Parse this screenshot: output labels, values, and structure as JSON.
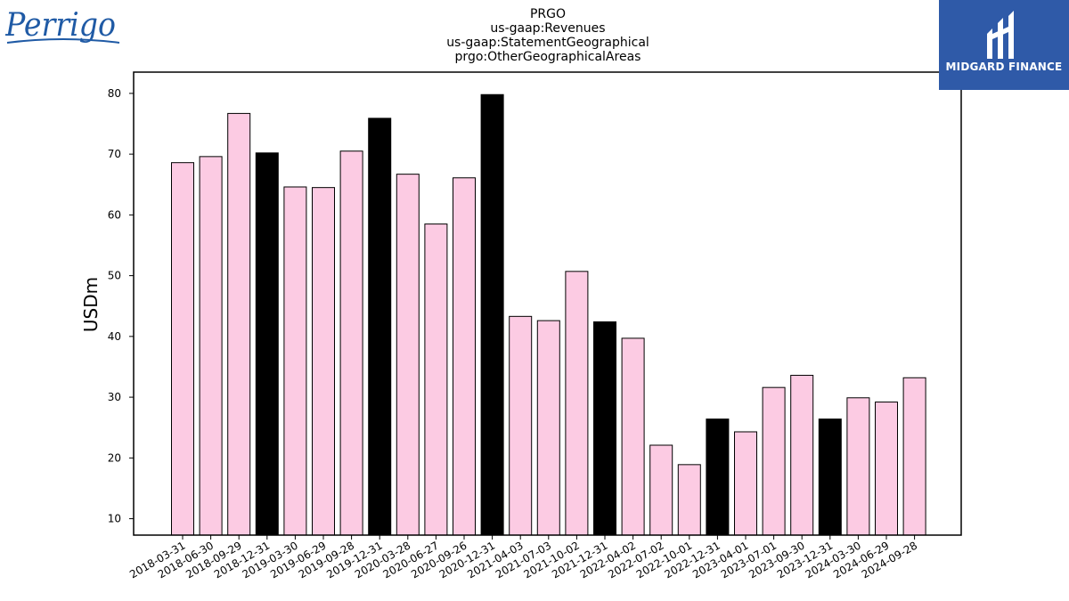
{
  "logos": {
    "left_brand": "Perrigo",
    "right_brand": "MIDGARD FINANCE"
  },
  "colors": {
    "quarter_bar": "#fccbe3",
    "year_end_bar": "#000000",
    "brand_blue": "#2f5aa8",
    "perrigo_blue": "#1f5aa5"
  },
  "chart_data": {
    "type": "bar",
    "title": [
      "PRGO",
      "us-gaap:Revenues",
      "us-gaap:StatementGeographical",
      "prgo:OtherGeographicalAreas"
    ],
    "xlabel": "",
    "ylabel": "USDm",
    "ylim": [
      7.3,
      83.5
    ],
    "yticks": [
      10,
      20,
      30,
      40,
      50,
      60,
      70,
      80
    ],
    "grid": false,
    "categories": [
      "2018-03-31",
      "2018-06-30",
      "2018-09-29",
      "2018-12-31",
      "2019-03-30",
      "2019-06-29",
      "2019-09-28",
      "2019-12-31",
      "2020-03-28",
      "2020-06-27",
      "2020-09-26",
      "2020-12-31",
      "2021-04-03",
      "2021-07-03",
      "2021-10-02",
      "2021-12-31",
      "2022-04-02",
      "2022-07-02",
      "2022-10-01",
      "2022-12-31",
      "2023-04-01",
      "2023-07-01",
      "2023-09-30",
      "2023-12-31",
      "2024-03-30",
      "2024-06-29",
      "2024-09-28"
    ],
    "values": [
      68.6,
      69.6,
      76.7,
      70.2,
      64.6,
      64.5,
      70.5,
      75.9,
      66.7,
      58.5,
      66.1,
      79.8,
      43.3,
      42.6,
      50.7,
      42.4,
      39.7,
      22.1,
      18.9,
      26.4,
      24.3,
      31.6,
      33.6,
      26.4,
      29.9,
      29.2,
      33.2
    ],
    "year_end": [
      false,
      false,
      false,
      true,
      false,
      false,
      false,
      true,
      false,
      false,
      false,
      true,
      false,
      false,
      false,
      true,
      false,
      false,
      false,
      true,
      false,
      false,
      false,
      true,
      false,
      false,
      false
    ]
  }
}
